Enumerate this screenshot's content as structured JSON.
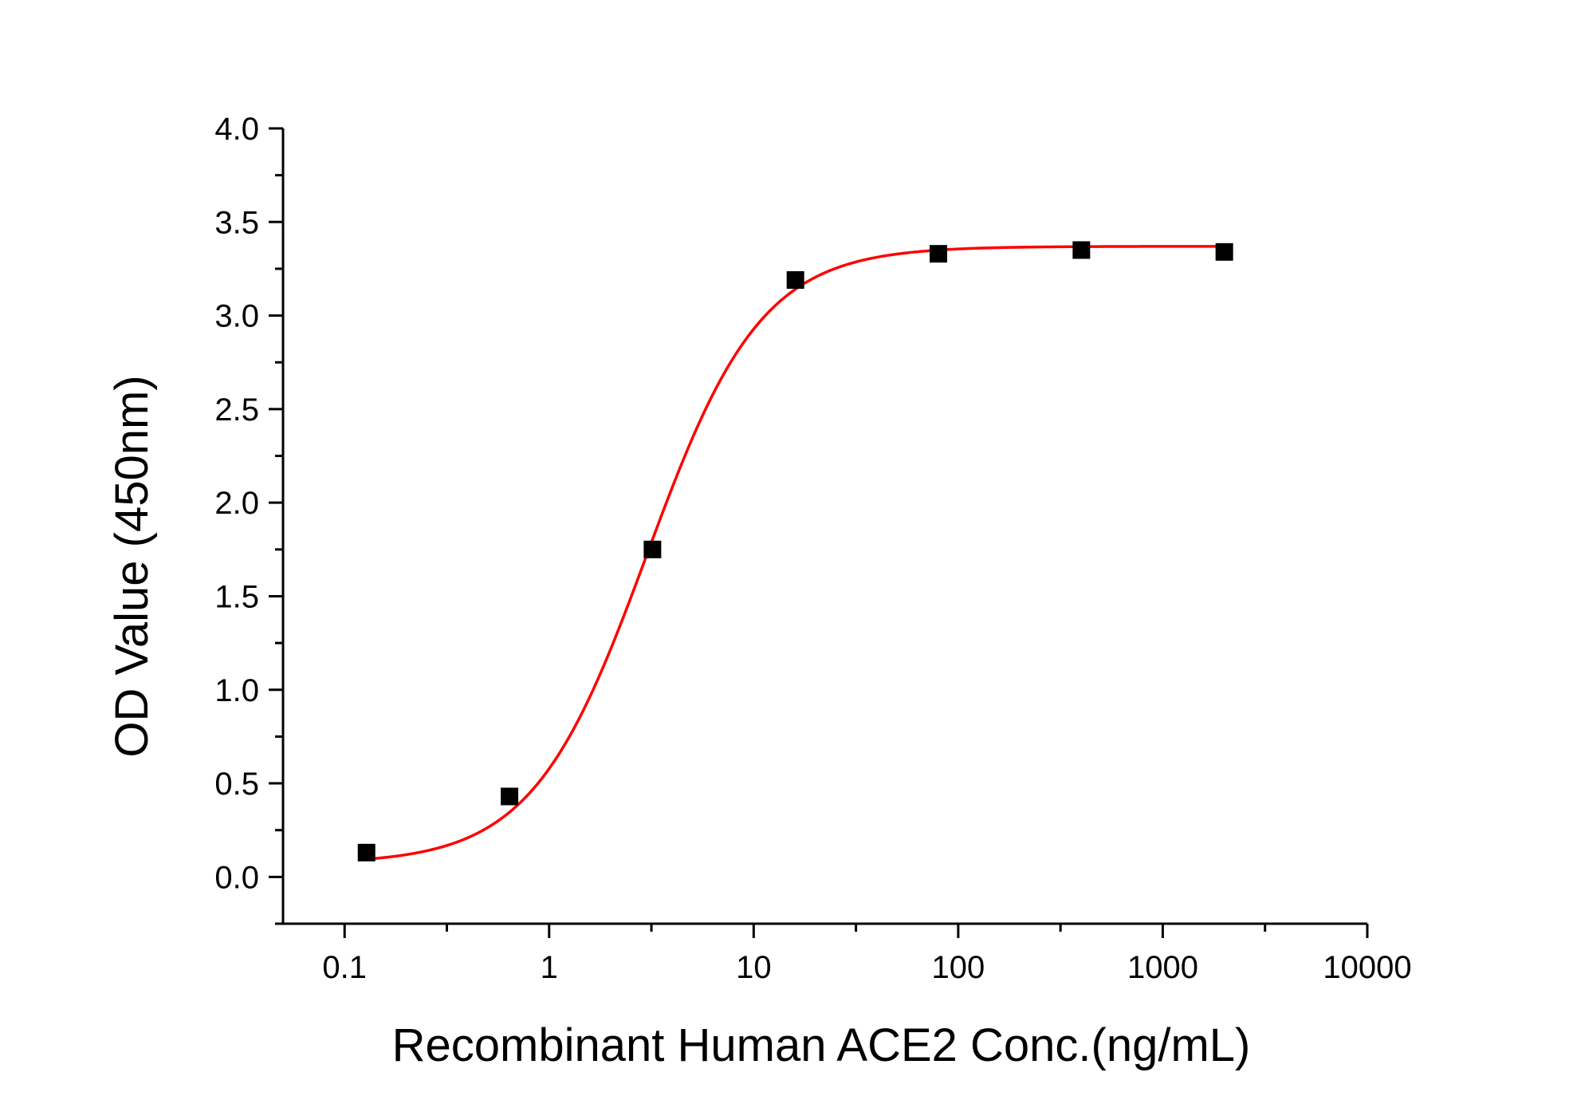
{
  "chart_data": {
    "type": "scatter",
    "title": "",
    "xlabel": "Recombinant Human ACE2 Conc.(ng/mL)",
    "ylabel": "OD Value (450nm)",
    "xscale": "log",
    "xlim": [
      0.05,
      10000
    ],
    "ylim": [
      -0.25,
      4.0
    ],
    "x_ticks": [
      0.1,
      1,
      10,
      100,
      1000,
      10000
    ],
    "x_tick_labels": [
      "0.1",
      "1",
      "10",
      "100",
      "1000",
      "10000"
    ],
    "y_ticks": [
      0.0,
      0.5,
      1.0,
      1.5,
      2.0,
      2.5,
      3.0,
      3.5,
      4.0
    ],
    "y_tick_labels": [
      "0.0",
      "0.5",
      "1.0",
      "1.5",
      "2.0",
      "2.5",
      "3.0",
      "3.5",
      "4.0"
    ],
    "grid": false,
    "legend": "none",
    "series": [
      {
        "marker": "square",
        "color": "#000000",
        "points": [
          {
            "x": 0.128,
            "y": 0.13
          },
          {
            "x": 0.64,
            "y": 0.43
          },
          {
            "x": 3.2,
            "y": 1.75
          },
          {
            "x": 16,
            "y": 3.19
          },
          {
            "x": 80,
            "y": 3.33
          },
          {
            "x": 400,
            "y": 3.35
          },
          {
            "x": 2000,
            "y": 3.34
          }
        ]
      }
    ],
    "fit_curve": {
      "color": "#ff0000",
      "model": "four-parameter logistic",
      "bottom": 0.07,
      "top": 3.37,
      "ec50": 3.0,
      "hill": 1.55,
      "x_range": [
        0.128,
        2000
      ]
    }
  }
}
